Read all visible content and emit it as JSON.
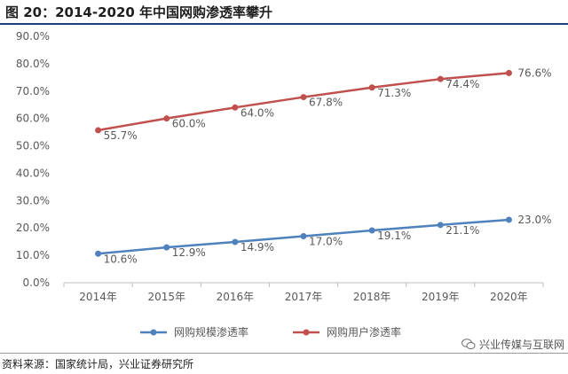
{
  "header": {
    "title": "图 20：2014-2020 年中国网购渗透率攀升"
  },
  "footer": {
    "source": "资料来源：国家统计局，兴业证券研究所",
    "watermark": "兴业传媒与互联网",
    "watermark_icon": "wechat-icon"
  },
  "colors": {
    "series1": "#4f81bd",
    "series2": "#c0504d",
    "grid": "#d9d9d9",
    "axis": "#bfbfbf"
  },
  "chart_data": {
    "type": "line",
    "title": "",
    "xlabel": "",
    "ylabel": "",
    "categories": [
      "2014年",
      "2015年",
      "2016年",
      "2017年",
      "2018年",
      "2019年",
      "2020年"
    ],
    "ylim": [
      0,
      90
    ],
    "yticks": [
      "0.0%",
      "10.0%",
      "20.0%",
      "30.0%",
      "40.0%",
      "50.0%",
      "60.0%",
      "70.0%",
      "80.0%",
      "90.0%"
    ],
    "grid": false,
    "legend_position": "bottom",
    "series": [
      {
        "name": "网购规模渗透率",
        "values": [
          10.6,
          12.9,
          14.9,
          17.0,
          19.1,
          21.1,
          23.0
        ],
        "labels": [
          "10.6%",
          "12.9%",
          "14.9%",
          "17.0%",
          "19.1%",
          "21.1%",
          "23.0%"
        ]
      },
      {
        "name": "网购用户渗透率",
        "values": [
          55.7,
          60.0,
          64.0,
          67.8,
          71.3,
          74.4,
          76.6
        ],
        "labels": [
          "55.7%",
          "60.0%",
          "64.0%",
          "67.8%",
          "71.3%",
          "74.4%",
          "76.6%"
        ]
      }
    ]
  }
}
